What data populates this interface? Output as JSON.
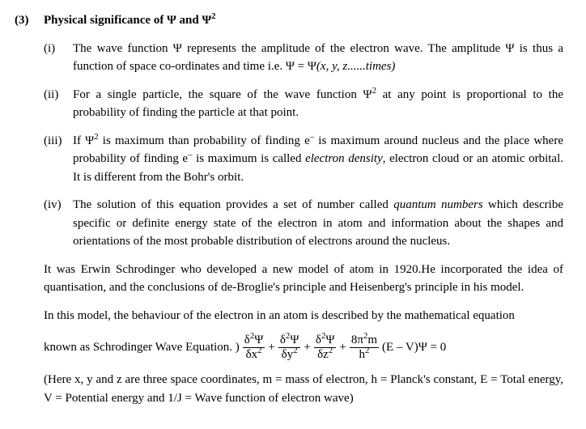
{
  "heading": {
    "num": "(3)",
    "title_pre": "Physical significance of  Ψ and Ψ",
    "title_sup": "2"
  },
  "items": [
    {
      "roman": "(i)",
      "html": "The wave function Ψ represents the amplitude of the electron wave. The amplitude Ψ is thus a function of space  co-ordinates and time i.e.  Ψ = Ψ<span class=\"italic\">(x, y, z......times)</span>"
    },
    {
      "roman": "(ii)",
      "html": "For a single particle, the square of the wave function Ψ<span class=\"sup2\">2</span>  at any point is proportional to the probability of finding the particle at that point."
    },
    {
      "roman": "(iii)",
      "html": "If  Ψ<span class=\"sup2\">2</span>  is maximum than probability of finding  <span class=\"eminus\">e<sup>–</sup></span> is maximum around nucleus and the place where probability of finding  <span class=\"eminus\">e<sup>–</sup></span>  is maximum is called <span class=\"italic\">electron density</span>, electron cloud or an atomic orbital. It is different from the Bohr's orbit."
    },
    {
      "roman": "(iv)",
      "html": "The solution of this equation provides a set of number called <span class=\"italic\">quantum numbers</span> which describe specific or definite energy state of the electron in atom and information about the shapes and orientations of the most probable distribution of electrons around the nucleus."
    }
  ],
  "para1": "It was Erwin Schrodinger who developed a new model of atom in 1920.He incorporated the idea of quantisation, and the conclusions of de-Broglie's principle and Heisenberg's principle in his model.",
  "para2": "In this model, the behaviour of the electron in an atom is described by the mathematical equation",
  "eq": {
    "lead": "known as Schrodinger Wave Equation. )",
    "t1_top": "δ<sup>2</sup>Ψ",
    "t1_bot": "δx<sup>2</sup>",
    "plus": "+",
    "t2_top": "δ<sup>2</sup>Ψ",
    "t2_bot": "δy<sup>2</sup>",
    "t3_top": "δ<sup>2</sup>Ψ",
    "t3_bot": "δz<sup>2</sup>",
    "t4_top": "8π<sup>2</sup>m",
    "t4_bot": "h<sup>2</sup>",
    "tail": "(E – V)Ψ = 0"
  },
  "footnote": "(Here x, y and z are three space coordinates, m = mass of electron, h = Planck's constant, E = Total energy, V = Potential energy and 1/J = Wave function of electron wave)"
}
